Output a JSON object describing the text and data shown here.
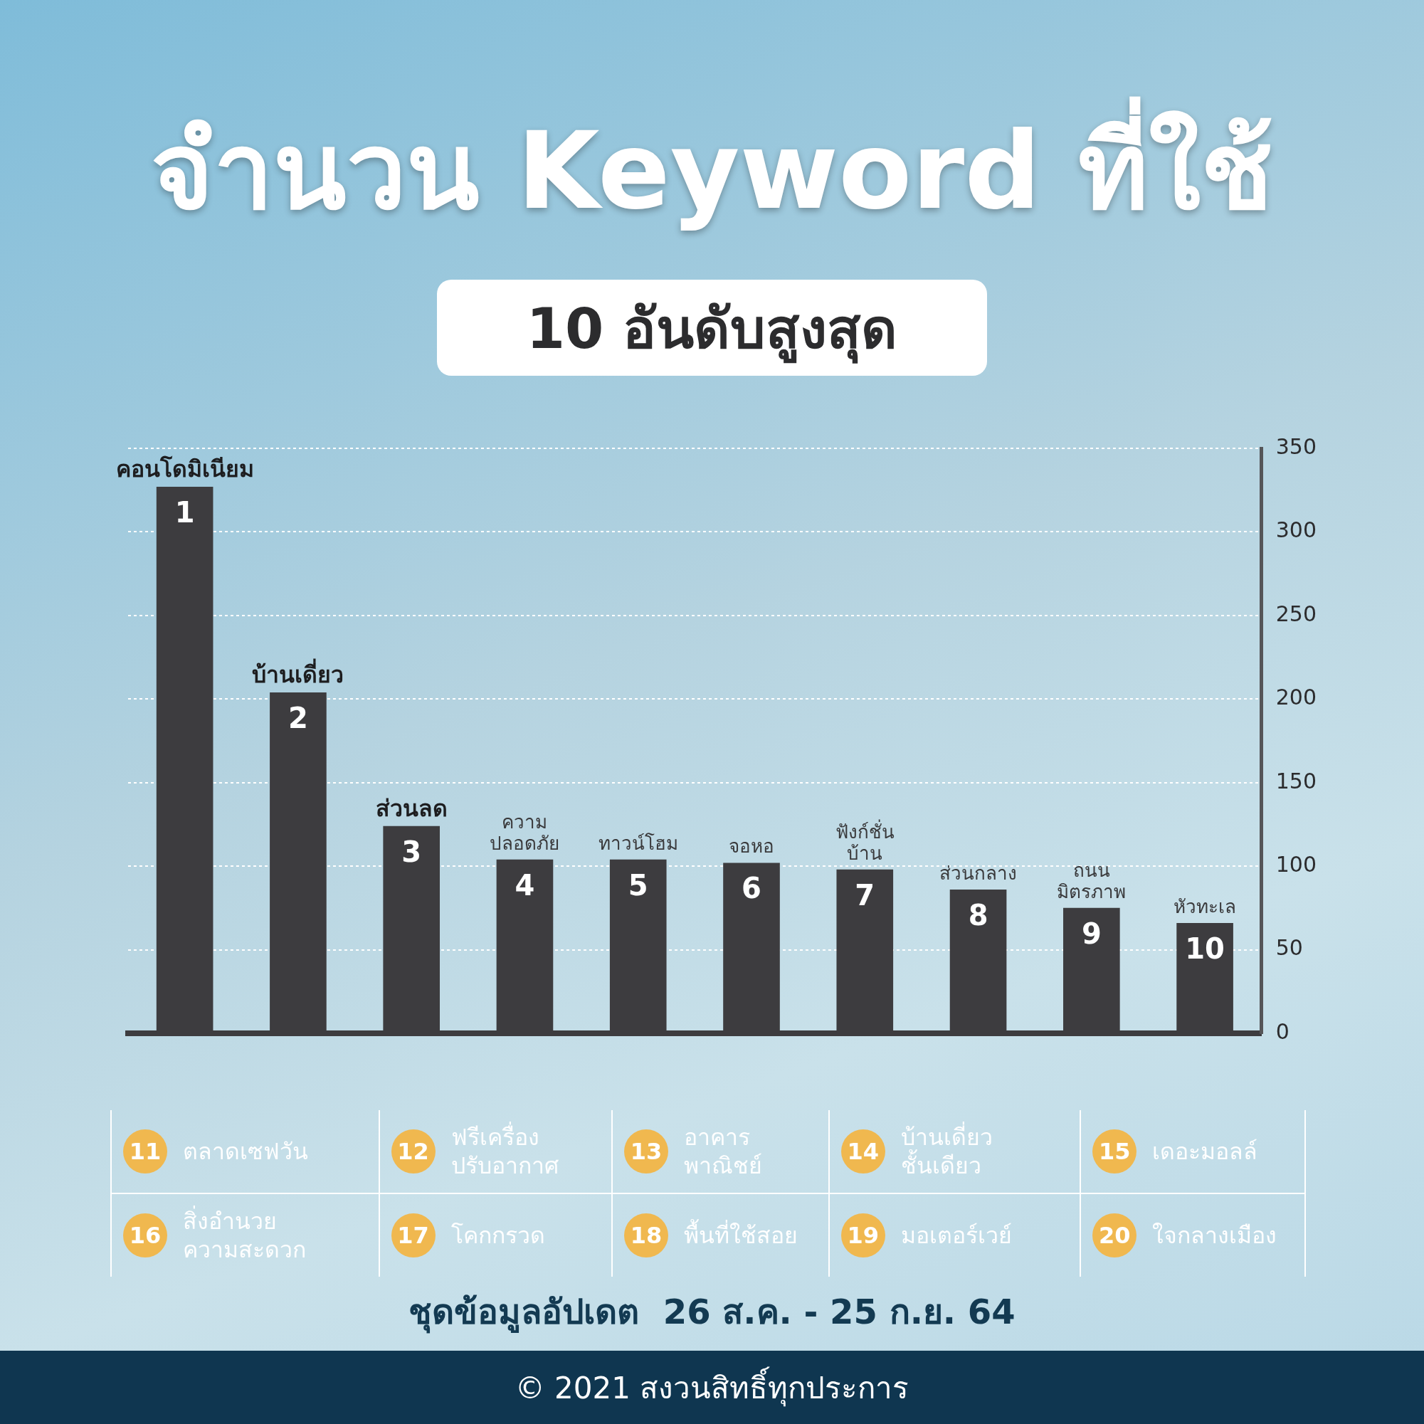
{
  "chart_data": {
    "type": "bar",
    "title": "จำนวน Keyword ที่ใช้",
    "subtitle": "10 อันดับสูงสุด",
    "categories": [
      "คอนโดมิเนียม",
      "บ้านเดี่ยว",
      "ส่วนลด",
      "ความ\nปลอดภัย",
      "ทาวน์โฮม",
      "จอหอ",
      "ฟังก์ชั่น\nบ้าน",
      "ส่วนกลาง",
      "ถนน\nมิตรภาพ",
      "หัวทะเล"
    ],
    "values": [
      327,
      204,
      124,
      104,
      104,
      102,
      98,
      86,
      75,
      66
    ],
    "color": "#3d3c3f",
    "ylim": [
      0,
      350
    ],
    "yticks": [
      0,
      50,
      100,
      150,
      200,
      250,
      300,
      350
    ],
    "grid": "y",
    "legend": false,
    "annotations": [
      {
        "text": "1",
        "x": "คอนโดมิเนียม",
        "y": 327
      },
      {
        "text": "2",
        "x": "บ้านเดี่ยว",
        "y": 204
      },
      {
        "text": "3",
        "x": "ส่วนลด",
        "y": 124
      },
      {
        "text": "4",
        "x": "ความ\nปลอดภัย",
        "y": 104
      },
      {
        "text": "5",
        "x": "ทาวน์โฮม",
        "y": 104
      },
      {
        "text": "6",
        "x": "จอหอ",
        "y": 102
      },
      {
        "text": "7",
        "x": "ฟังก์ชั่น\nบ้าน",
        "y": 98
      },
      {
        "text": "8",
        "x": "ส่วนกลาง",
        "y": 86
      },
      {
        "text": "9",
        "x": "ถนน\nมิตรภาพ",
        "y": 75
      },
      {
        "text": "10",
        "x": "หัวทะเล",
        "y": 66
      },
      "11 ตลาดเซฟวัน",
      "12 ฟรีเครื่อง\nปรับอากาศ",
      "13 อาคาร\nพาณิชย์",
      "14 บ้านเดี่ยว\nชั้นเดียว",
      "15 เดอะมอลล์",
      "16 สิ่งอำนวย\nความสะดวก",
      "17 โคกกรวด",
      "18 พื้นที่ใช้สอย",
      "19 มอเตอร์เวย์",
      "20 ใจกลางเมือง",
      "ชุดข้อมูลอัปเดต  26 ส.ค. - 25 ก.ย. 64",
      "© 2021 สงวนสิทธิ์ทุกประการ"
    ]
  }
}
